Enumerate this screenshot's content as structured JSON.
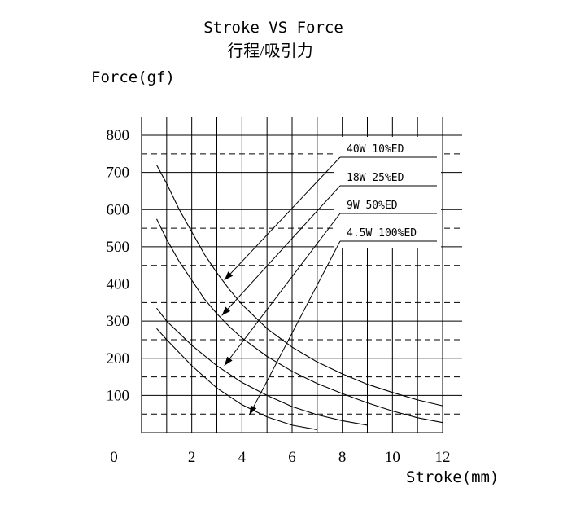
{
  "chart_data": {
    "type": "line",
    "title": "Stroke VS  Force",
    "subtitle": "行程/吸引力",
    "xlabel": "Stroke(mm)",
    "ylabel": "Force(gf)",
    "xlim": [
      0,
      12
    ],
    "ylim": [
      0,
      800
    ],
    "x_ticks": [
      "0",
      "2",
      "4",
      "6",
      "8",
      "10",
      "12"
    ],
    "y_ticks": [
      "100",
      "200",
      "300",
      "400",
      "500",
      "600",
      "700",
      "800"
    ],
    "grid": true,
    "series": [
      {
        "name": "40W 10%ED",
        "x": [
          0.6,
          1.0,
          1.5,
          2.0,
          2.5,
          3.0,
          3.5,
          4.0,
          5.0,
          6.0,
          7.0,
          8.0,
          9.0,
          10.0,
          11.0,
          12.0
        ],
        "y": [
          720,
          670,
          600,
          540,
          480,
          430,
          385,
          345,
          280,
          230,
          190,
          158,
          130,
          108,
          88,
          72
        ]
      },
      {
        "name": "18W 25%ED",
        "x": [
          0.6,
          1.0,
          1.5,
          2.0,
          2.5,
          3.0,
          3.5,
          4.0,
          5.0,
          6.0,
          7.0,
          8.0,
          9.0,
          10.0,
          11.0,
          12.0
        ],
        "y": [
          575,
          520,
          460,
          410,
          360,
          320,
          285,
          255,
          205,
          165,
          132,
          105,
          80,
          58,
          40,
          27
        ]
      },
      {
        "name": "9W  50%ED",
        "x": [
          0.6,
          1.0,
          2.0,
          3.0,
          4.0,
          5.0,
          6.0,
          7.0,
          8.0,
          9.0
        ],
        "y": [
          335,
          300,
          235,
          180,
          135,
          100,
          70,
          48,
          32,
          20
        ]
      },
      {
        "name": "4.5W 100%ED",
        "x": [
          0.6,
          1.0,
          2.0,
          3.0,
          4.0,
          5.0,
          6.0,
          7.0
        ],
        "y": [
          280,
          250,
          180,
          120,
          75,
          42,
          20,
          8
        ]
      }
    ],
    "legend_rows": [
      {
        "label": "40W 10%ED",
        "arrow_to": [
          3.3,
          410
        ]
      },
      {
        "label": "18W 25%ED",
        "arrow_to": [
          3.2,
          315
        ]
      },
      {
        "label": "9W  50%ED",
        "arrow_to": [
          3.3,
          180
        ]
      },
      {
        "label": "4.5W 100%ED",
        "arrow_to": [
          4.3,
          48
        ]
      }
    ]
  }
}
